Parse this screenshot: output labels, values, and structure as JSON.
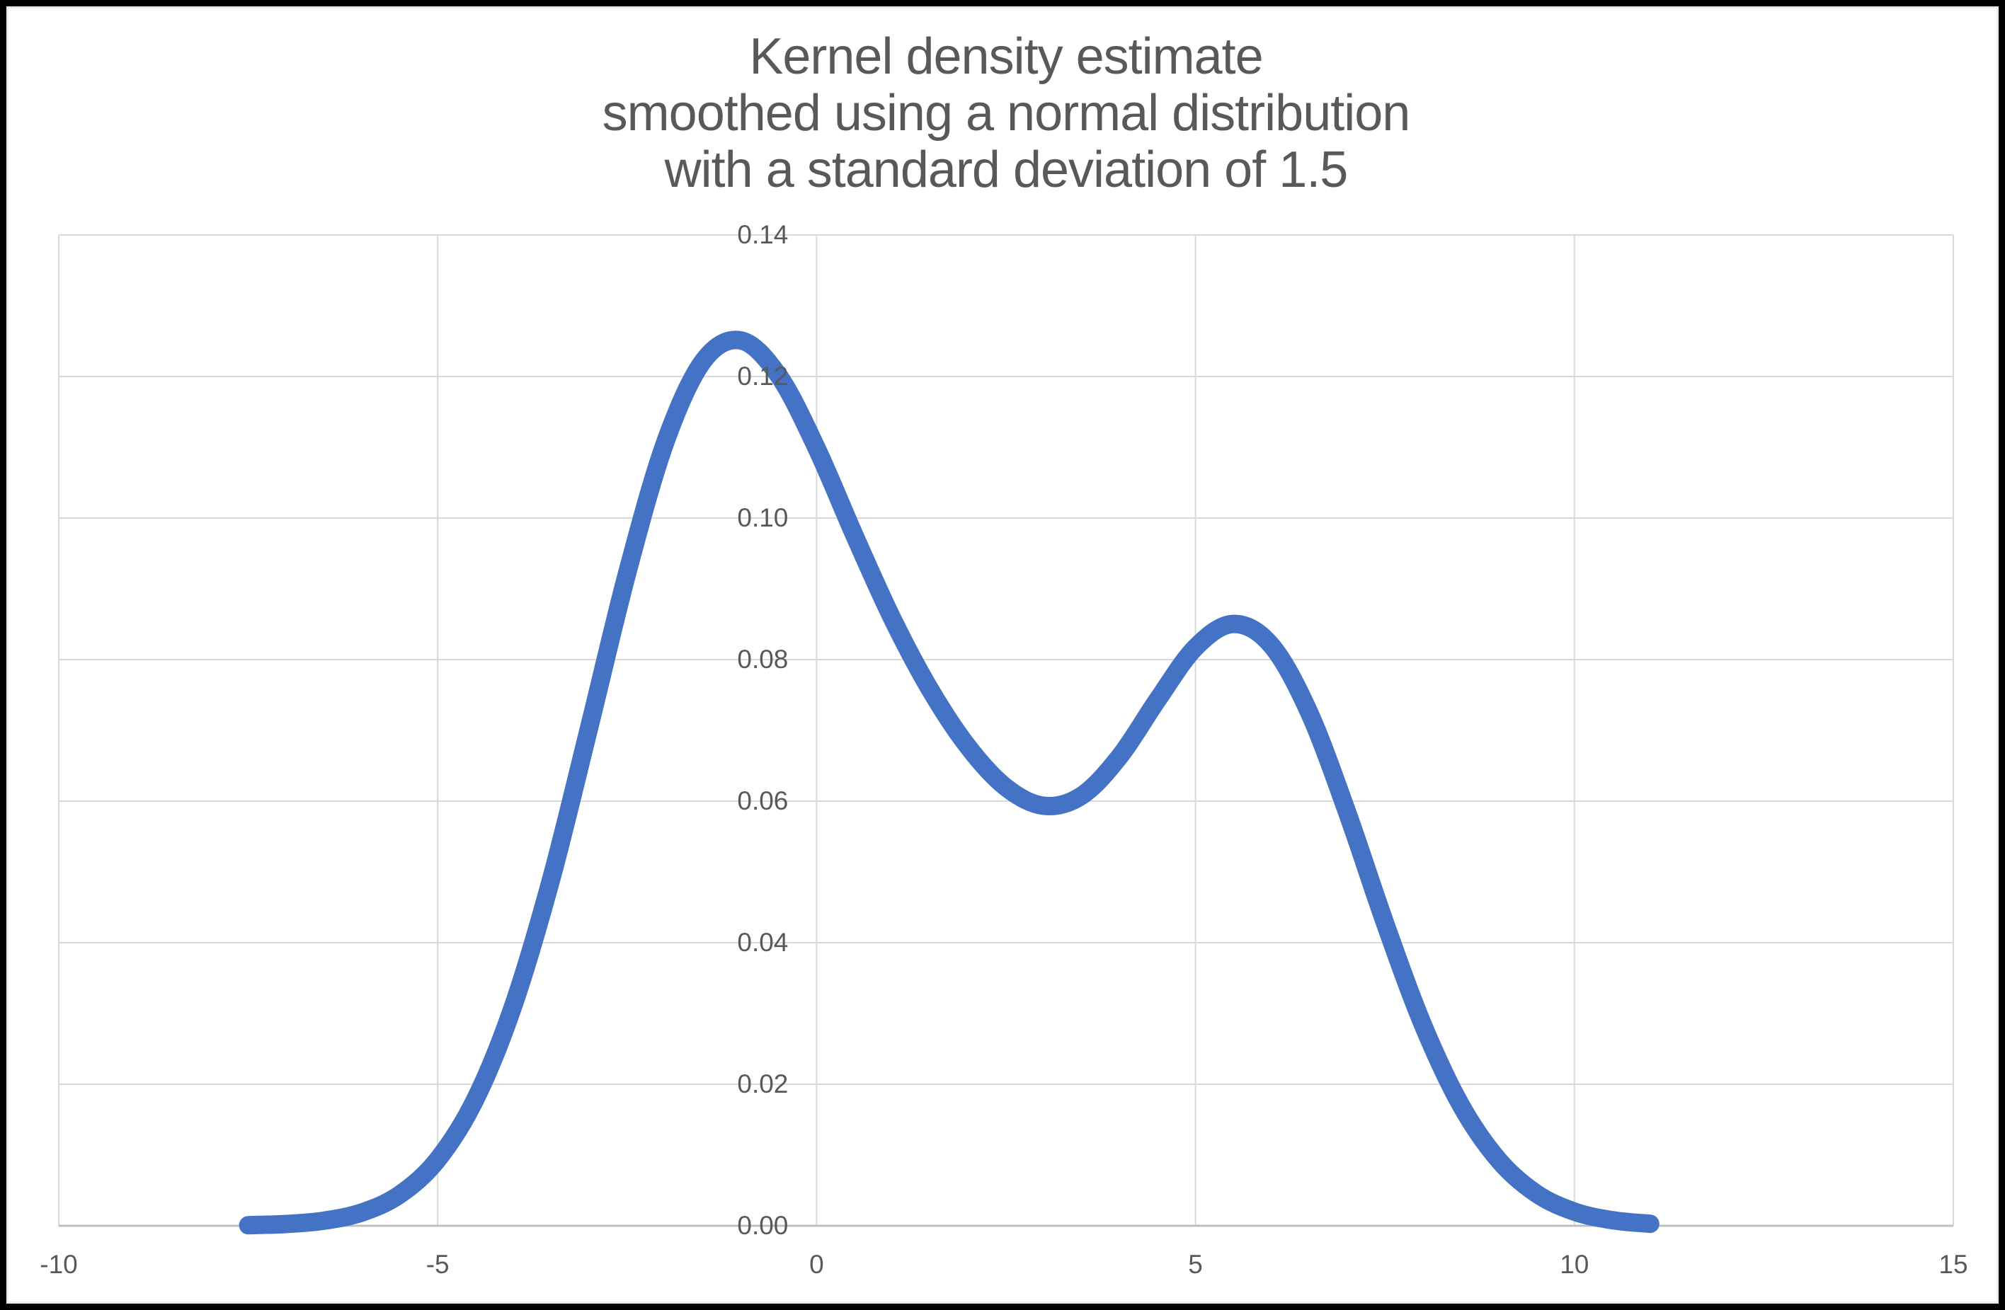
{
  "title": {
    "lines": [
      "Kernel density estimate",
      "smoothed using a normal distribution",
      "with a standard deviation of 1.5"
    ]
  },
  "chart_data": {
    "type": "line",
    "title": "Kernel density estimate smoothed using a normal distribution with a standard deviation of 1.5",
    "xlabel": "",
    "ylabel": "",
    "xlim": [
      -10,
      15
    ],
    "ylim": [
      0,
      0.14
    ],
    "x_ticks": [
      -10,
      -5,
      0,
      5,
      10,
      15
    ],
    "y_ticks": [
      0,
      0.02,
      0.04,
      0.06,
      0.08,
      0.1,
      0.12,
      0.14
    ],
    "y_tick_labels": [
      "0.00",
      "0.02",
      "0.04",
      "0.06",
      "0.08",
      "0.10",
      "0.12",
      "0.14"
    ],
    "grid": true,
    "legend": "none",
    "smoothing": "normal kernel, standard deviation 1.5",
    "series": [
      {
        "name": "kernel-density-estimate",
        "x": [
          -7.5,
          -7.0,
          -6.5,
          -6.0,
          -5.5,
          -5.0,
          -4.5,
          -4.0,
          -3.5,
          -3.0,
          -2.5,
          -2.0,
          -1.5,
          -1.0,
          -0.5,
          0.0,
          0.5,
          1.0,
          1.5,
          2.0,
          2.5,
          3.0,
          3.5,
          4.0,
          4.5,
          5.0,
          5.5,
          6.0,
          6.5,
          7.0,
          7.5,
          8.0,
          8.5,
          9.0,
          9.5,
          10.0,
          10.5,
          11.0
        ],
        "y": [
          8e-05,
          0.00025,
          0.00072,
          0.00188,
          0.00441,
          0.00936,
          0.01794,
          0.03115,
          0.04908,
          0.07044,
          0.0922,
          0.1106,
          0.12213,
          0.1251,
          0.12012,
          0.10988,
          0.09755,
          0.08578,
          0.07572,
          0.06767,
          0.06194,
          0.05934,
          0.06079,
          0.06633,
          0.07433,
          0.08172,
          0.08504,
          0.08203,
          0.07252,
          0.05846,
          0.04281,
          0.02843,
          0.01708,
          0.00928,
          0.00454,
          0.002,
          0.00079,
          0.00028
        ]
      }
    ],
    "annotations": {
      "peak_1": {
        "x": -1.0,
        "y": 0.125
      },
      "trough": {
        "x": 3.0,
        "y": 0.059
      },
      "peak_2": {
        "x": 5.5,
        "y": 0.085
      }
    }
  },
  "colors": {
    "line": "#4472C4",
    "gridline": "#D9D9D9",
    "axis_line": "#BFBFBF",
    "label": "#595959",
    "title": "#595959",
    "frame": "#010101",
    "background": "#FFFFFF"
  }
}
